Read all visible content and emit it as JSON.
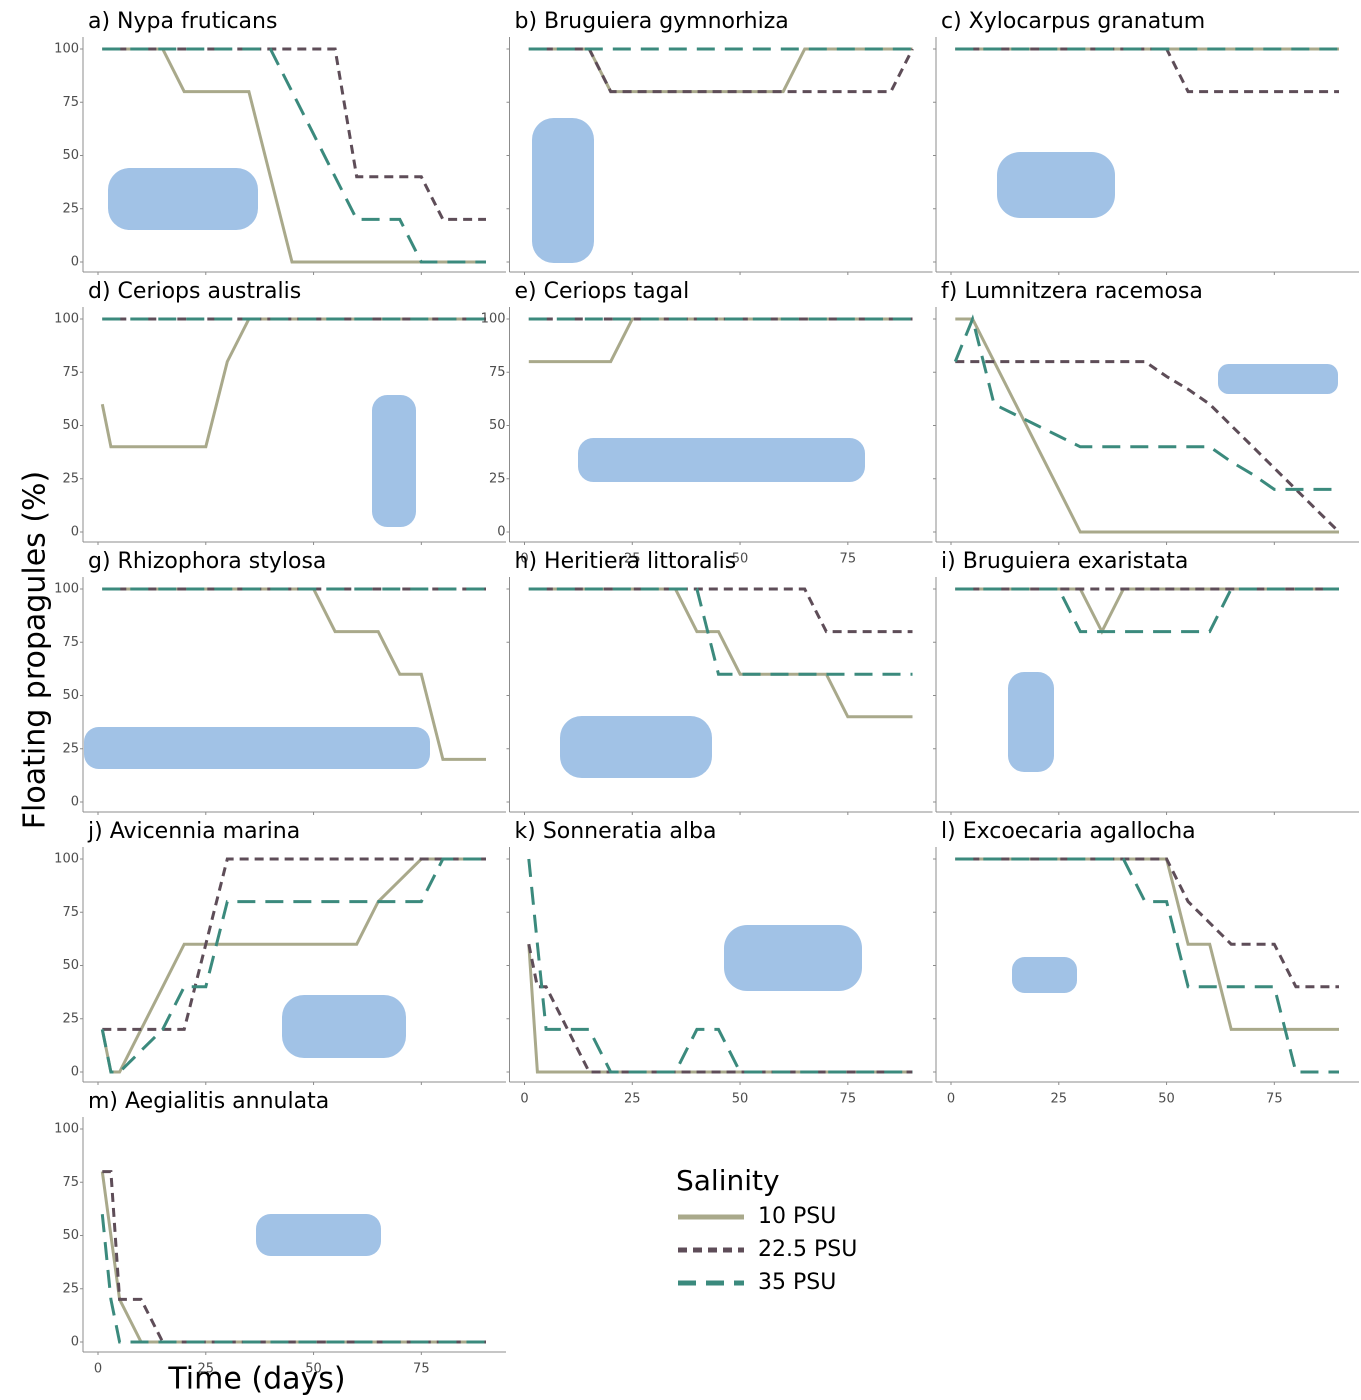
{
  "chart_data": {
    "type": "line",
    "y_label": "Floating propagules (%)",
    "x_label": "Time (days)",
    "legend_title": "Salinity",
    "x": [
      1,
      3,
      5,
      10,
      15,
      20,
      25,
      30,
      35,
      40,
      45,
      50,
      55,
      60,
      65,
      70,
      75,
      80,
      85,
      90
    ],
    "xlim": [
      0,
      90
    ],
    "ylim": [
      0,
      100
    ],
    "xticks": [
      0,
      25,
      50,
      75
    ],
    "yticks": [
      0,
      25,
      50,
      75,
      100
    ],
    "series": [
      {
        "name": "10 PSU",
        "color": "#a9a98b",
        "dash": "solid"
      },
      {
        "name": "22.5 PSU",
        "color": "#5e4d58",
        "dash": "dashed"
      },
      {
        "name": "35 PSU",
        "color": "#3b8a7d",
        "dash": "longdash"
      }
    ],
    "panels": [
      {
        "title": "a) Nypa fruticans",
        "y_tick_labels": true,
        "x_tick_labels": false,
        "series": [
          {
            "values": [
              100,
              100,
              100,
              100,
              100,
              80,
              80,
              80,
              80,
              40,
              0,
              0,
              0,
              0,
              0,
              0,
              0,
              0,
              0,
              0
            ]
          },
          {
            "values": [
              100,
              100,
              100,
              100,
              100,
              100,
              100,
              100,
              100,
              100,
              100,
              100,
              100,
              40,
              40,
              40,
              40,
              20,
              20,
              20
            ]
          },
          {
            "values": [
              100,
              100,
              100,
              100,
              100,
              100,
              100,
              100,
              100,
              100,
              80,
              60,
              40,
              20,
              20,
              20,
              0,
              0,
              0,
              0
            ]
          }
        ]
      },
      {
        "title": "b) Bruguiera gymnorhiza",
        "y_tick_labels": false,
        "x_tick_labels": false,
        "series": [
          {
            "values": [
              100,
              100,
              100,
              100,
              100,
              80,
              80,
              80,
              80,
              80,
              80,
              80,
              80,
              80,
              100,
              100,
              100,
              100,
              100,
              100
            ]
          },
          {
            "values": [
              100,
              100,
              100,
              100,
              100,
              80,
              80,
              80,
              80,
              80,
              80,
              80,
              80,
              80,
              80,
              80,
              80,
              80,
              80,
              100
            ]
          },
          {
            "values": [
              100,
              100,
              100,
              100,
              100,
              100,
              100,
              100,
              100,
              100,
              100,
              100,
              100,
              100,
              100,
              100,
              100,
              100,
              100,
              100
            ]
          }
        ]
      },
      {
        "title": "c) Xylocarpus granatum",
        "y_tick_labels": false,
        "x_tick_labels": false,
        "series": [
          {
            "values": [
              100,
              100,
              100,
              100,
              100,
              100,
              100,
              100,
              100,
              100,
              100,
              100,
              100,
              100,
              100,
              100,
              100,
              100,
              100,
              100
            ]
          },
          {
            "values": [
              100,
              100,
              100,
              100,
              100,
              100,
              100,
              100,
              100,
              100,
              100,
              100,
              80,
              80,
              80,
              80,
              80,
              80,
              80,
              80
            ]
          },
          {
            "values": [
              100,
              100,
              100,
              100,
              100,
              100,
              100,
              100,
              100,
              100,
              100,
              100,
              100,
              100,
              100,
              100,
              100,
              100,
              100,
              100
            ]
          }
        ]
      },
      {
        "title": "d) Ceriops australis",
        "y_tick_labels": true,
        "x_tick_labels": false,
        "series": [
          {
            "values": [
              60,
              40,
              40,
              40,
              40,
              40,
              40,
              80,
              100,
              100,
              100,
              100,
              100,
              100,
              100,
              100,
              100,
              100,
              100,
              100
            ]
          },
          {
            "values": [
              100,
              100,
              100,
              100,
              100,
              100,
              100,
              100,
              100,
              100,
              100,
              100,
              100,
              100,
              100,
              100,
              100,
              100,
              100,
              100
            ]
          },
          {
            "values": [
              100,
              100,
              100,
              100,
              100,
              100,
              100,
              100,
              100,
              100,
              100,
              100,
              100,
              100,
              100,
              100,
              100,
              100,
              100,
              100
            ]
          }
        ]
      },
      {
        "title": "e) Ceriops tagal",
        "y_tick_labels": true,
        "x_tick_labels": true,
        "series": [
          {
            "values": [
              80,
              80,
              80,
              80,
              80,
              80,
              100,
              100,
              100,
              100,
              100,
              100,
              100,
              100,
              100,
              100,
              100,
              100,
              100,
              100
            ]
          },
          {
            "values": [
              100,
              100,
              100,
              100,
              100,
              100,
              100,
              100,
              100,
              100,
              100,
              100,
              100,
              100,
              100,
              100,
              100,
              100,
              100,
              100
            ]
          },
          {
            "values": [
              100,
              100,
              100,
              100,
              100,
              100,
              100,
              100,
              100,
              100,
              100,
              100,
              100,
              100,
              100,
              100,
              100,
              100,
              100,
              100
            ]
          }
        ]
      },
      {
        "title": "f) Lumnitzera racemosa",
        "y_tick_labels": false,
        "x_tick_labels": false,
        "series": [
          {
            "values": [
              100,
              100,
              100,
              80,
              60,
              40,
              20,
              0,
              0,
              0,
              0,
              0,
              0,
              0,
              0,
              0,
              0,
              0,
              0,
              0
            ]
          },
          {
            "values": [
              80,
              80,
              80,
              80,
              80,
              80,
              80,
              80,
              80,
              80,
              80,
              73,
              67,
              60,
              50,
              40,
              30,
              20,
              10,
              0
            ]
          },
          {
            "values": [
              80,
              90,
              100,
              60,
              55,
              50,
              45,
              40,
              40,
              40,
              40,
              40,
              40,
              40,
              33,
              27,
              20,
              20,
              20,
              20
            ]
          }
        ]
      },
      {
        "title": "g) Rhizophora stylosa",
        "y_tick_labels": true,
        "x_tick_labels": false,
        "series": [
          {
            "values": [
              100,
              100,
              100,
              100,
              100,
              100,
              100,
              100,
              100,
              100,
              100,
              100,
              80,
              80,
              80,
              60,
              60,
              20,
              20,
              20
            ]
          },
          {
            "values": [
              100,
              100,
              100,
              100,
              100,
              100,
              100,
              100,
              100,
              100,
              100,
              100,
              100,
              100,
              100,
              100,
              100,
              100,
              100,
              100
            ]
          },
          {
            "values": [
              100,
              100,
              100,
              100,
              100,
              100,
              100,
              100,
              100,
              100,
              100,
              100,
              100,
              100,
              100,
              100,
              100,
              100,
              100,
              100
            ]
          }
        ]
      },
      {
        "title": "h) Heritiera littoralis",
        "y_tick_labels": false,
        "x_tick_labels": false,
        "series": [
          {
            "values": [
              100,
              100,
              100,
              100,
              100,
              100,
              100,
              100,
              100,
              80,
              80,
              60,
              60,
              60,
              60,
              60,
              40,
              40,
              40,
              40
            ]
          },
          {
            "values": [
              100,
              100,
              100,
              100,
              100,
              100,
              100,
              100,
              100,
              100,
              100,
              100,
              100,
              100,
              100,
              80,
              80,
              80,
              80,
              80
            ]
          },
          {
            "values": [
              100,
              100,
              100,
              100,
              100,
              100,
              100,
              100,
              100,
              100,
              60,
              60,
              60,
              60,
              60,
              60,
              60,
              60,
              60,
              60
            ]
          }
        ]
      },
      {
        "title": "i) Bruguiera exaristata",
        "y_tick_labels": false,
        "x_tick_labels": false,
        "series": [
          {
            "values": [
              100,
              100,
              100,
              100,
              100,
              100,
              100,
              100,
              80,
              100,
              100,
              100,
              100,
              100,
              100,
              100,
              100,
              100,
              100,
              100
            ]
          },
          {
            "values": [
              100,
              100,
              100,
              100,
              100,
              100,
              100,
              100,
              100,
              100,
              100,
              100,
              100,
              100,
              100,
              100,
              100,
              100,
              100,
              100
            ]
          },
          {
            "values": [
              100,
              100,
              100,
              100,
              100,
              100,
              100,
              80,
              80,
              80,
              80,
              80,
              80,
              80,
              100,
              100,
              100,
              100,
              100,
              100
            ]
          }
        ]
      },
      {
        "title": "j) Avicennia marina",
        "y_tick_labels": true,
        "x_tick_labels": false,
        "series": [
          {
            "values": [
              20,
              0,
              0,
              20,
              40,
              60,
              60,
              60,
              60,
              60,
              60,
              60,
              60,
              60,
              80,
              90,
              100,
              100,
              100,
              100
            ]
          },
          {
            "values": [
              20,
              20,
              20,
              20,
              20,
              20,
              60,
              100,
              100,
              100,
              100,
              100,
              100,
              100,
              100,
              100,
              100,
              100,
              100,
              100
            ]
          },
          {
            "values": [
              20,
              0,
              0,
              10,
              20,
              40,
              40,
              80,
              80,
              80,
              80,
              80,
              80,
              80,
              80,
              80,
              80,
              100,
              100,
              100
            ]
          }
        ]
      },
      {
        "title": "k) Sonneratia alba",
        "y_tick_labels": false,
        "x_tick_labels": true,
        "series": [
          {
            "values": [
              60,
              0,
              0,
              0,
              0,
              0,
              0,
              0,
              0,
              0,
              0,
              0,
              0,
              0,
              0,
              0,
              0,
              0,
              0,
              0
            ]
          },
          {
            "values": [
              60,
              40,
              40,
              20,
              0,
              0,
              0,
              0,
              0,
              0,
              0,
              0,
              0,
              0,
              0,
              0,
              0,
              0,
              0,
              0
            ]
          },
          {
            "values": [
              100,
              60,
              20,
              20,
              20,
              0,
              0,
              0,
              0,
              20,
              20,
              0,
              0,
              0,
              0,
              0,
              0,
              0,
              0,
              0
            ]
          }
        ]
      },
      {
        "title": "l) Excoecaria agallocha",
        "y_tick_labels": false,
        "x_tick_labels": true,
        "series": [
          {
            "values": [
              100,
              100,
              100,
              100,
              100,
              100,
              100,
              100,
              100,
              100,
              100,
              100,
              60,
              60,
              20,
              20,
              20,
              20,
              20,
              20
            ]
          },
          {
            "values": [
              100,
              100,
              100,
              100,
              100,
              100,
              100,
              100,
              100,
              100,
              100,
              100,
              80,
              70,
              60,
              60,
              60,
              40,
              40,
              40
            ]
          },
          {
            "values": [
              100,
              100,
              100,
              100,
              100,
              100,
              100,
              100,
              100,
              100,
              80,
              80,
              40,
              40,
              40,
              40,
              40,
              0,
              0,
              0
            ]
          }
        ]
      },
      {
        "title": "m) Aegialitis annulata",
        "y_tick_labels": true,
        "x_tick_labels": true,
        "series": [
          {
            "values": [
              80,
              50,
              20,
              0,
              0,
              0,
              0,
              0,
              0,
              0,
              0,
              0,
              0,
              0,
              0,
              0,
              0,
              0,
              0,
              0
            ]
          },
          {
            "values": [
              80,
              80,
              20,
              20,
              0,
              0,
              0,
              0,
              0,
              0,
              0,
              0,
              0,
              0,
              0,
              0,
              0,
              0,
              0,
              0
            ]
          },
          {
            "values": [
              60,
              20,
              0,
              0,
              0,
              0,
              0,
              0,
              0,
              0,
              0,
              0,
              0,
              0,
              0,
              0,
              0,
              0,
              0,
              0
            ]
          }
        ]
      }
    ]
  }
}
